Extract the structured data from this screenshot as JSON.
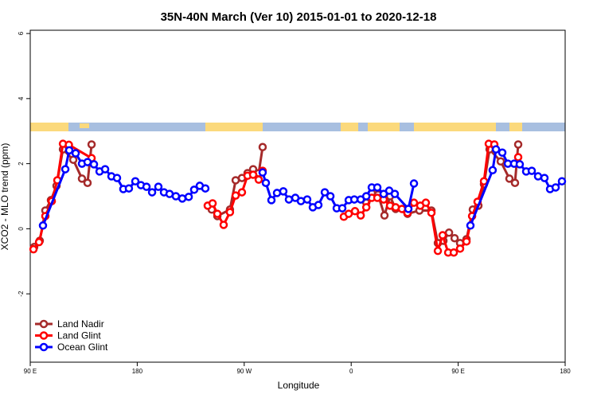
{
  "chart_data": {
    "type": "line",
    "title": "35N-40N March (Ver 10)   2015-01-01 to 2020-12-18",
    "x_label": "Longitude",
    "y_label": "XCO2 - MLO trend (ppm)",
    "xlim": [
      90,
      540
    ],
    "xticks": [
      {
        "value": 90,
        "label": "90 E"
      },
      180,
      {
        "value": 270,
        "label": "90 W"
      },
      {
        "value": 360,
        "label": "0"
      },
      {
        "value": 450,
        "label": "90 E"
      },
      {
        "value": 540,
        "label": "180"
      }
    ],
    "ylim": [
      -4.1,
      6.1
    ],
    "yticks": [
      -2,
      0,
      2,
      4,
      6
    ],
    "legend": "bottom-left",
    "series": [
      {
        "name": "Land Nadir",
        "color": "#a52a2a",
        "x": [
          93.3,
          98,
          102.7,
          107.4,
          112.1,
          117.5,
          126.2,
          133.5,
          138.2,
          141.6,
          242.7,
          247.4,
          258,
          262.8,
          268.1,
          272.8,
          277.5,
          282.2,
          285.5,
          372.7,
          377.3,
          382.6,
          388,
          392.7,
          397.4,
          407.4,
          417.4,
          427.5,
          432.9,
          437.6,
          442.3,
          447,
          451.6,
          457,
          462.3,
          467,
          471.7,
          476.4,
          485.8,
          493.1,
          497.8,
          500.5
        ],
        "values": [
          -0.56,
          -0.37,
          0.56,
          0.88,
          1.32,
          2.44,
          2.12,
          1.54,
          1.41,
          2.59,
          0.59,
          0.39,
          0.59,
          1.49,
          1.56,
          1.71,
          1.83,
          1.71,
          2.51,
          0.8,
          1.1,
          1.05,
          0.41,
          1.0,
          0.61,
          0.46,
          0.56,
          0.56,
          -0.44,
          -0.37,
          -0.12,
          -0.29,
          -0.44,
          -0.32,
          0.59,
          0.71,
          1.37,
          2.44,
          2.07,
          1.54,
          1.41,
          2.59
        ]
      },
      {
        "name": "Land Glint",
        "color": "#ff0000",
        "x": [
          92.7,
          97.4,
          102.7,
          108.1,
          112.8,
          117.5,
          122.5,
          141.6,
          239.3,
          243.4,
          247.4,
          252.7,
          258,
          262.8,
          268.1,
          272.8,
          277.5,
          282.2,
          285.5,
          353.8,
          357.9,
          363.2,
          368,
          372.7,
          377.3,
          382,
          387.3,
          392.7,
          397.4,
          402.7,
          407.4,
          412.8,
          418.1,
          422.8,
          427.5,
          432.9,
          436.9,
          441.6,
          446.3,
          451.6,
          457,
          461.7,
          466.3,
          471.7,
          475.7,
          480.4,
          500.5
        ],
        "values": [
          -0.63,
          -0.41,
          0.39,
          0.85,
          1.49,
          2.61,
          2.58,
          2.17,
          0.71,
          0.78,
          0.46,
          0.12,
          0.51,
          1.02,
          1.12,
          1.63,
          1.66,
          1.51,
          1.78,
          0.37,
          0.46,
          0.54,
          0.41,
          0.66,
          0.95,
          0.95,
          0.9,
          0.71,
          0.66,
          0.61,
          0.49,
          0.8,
          0.71,
          0.8,
          0.49,
          -0.68,
          -0.2,
          -0.73,
          -0.73,
          -0.61,
          -0.39,
          0.39,
          0.83,
          1.46,
          2.61,
          2.59,
          2.2
        ]
      },
      {
        "name": "Ocean Glint",
        "color": "#0000ff",
        "x": [
          100.7,
          119.5,
          122.8,
          128.2,
          133.5,
          138.2,
          143.6,
          148.3,
          153,
          158.3,
          163,
          168.3,
          173,
          178.4,
          183.1,
          187.8,
          192.5,
          197.8,
          202.5,
          207.2,
          212.5,
          217.9,
          223.3,
          227.9,
          232.6,
          237.3,
          285.5,
          288.2,
          292.9,
          297.6,
          302.9,
          307.6,
          313,
          317.7,
          323,
          327.7,
          332.4,
          337.8,
          342.5,
          347.8,
          352.5,
          357.9,
          362.6,
          368,
          372.7,
          377.3,
          382,
          387.3,
          392,
          396.7,
          408.1,
          412.8,
          460.3,
          479,
          481.8,
          487.1,
          491.8,
          497.1,
          501.8,
          507.2,
          511.9,
          517.2,
          522.6,
          527.3,
          532,
          537.3
        ],
        "values": [
          0.1,
          1.83,
          2.41,
          2.32,
          2.0,
          2.05,
          1.98,
          1.76,
          1.83,
          1.61,
          1.56,
          1.22,
          1.24,
          1.46,
          1.34,
          1.29,
          1.12,
          1.29,
          1.12,
          1.07,
          1.0,
          0.93,
          0.98,
          1.2,
          1.32,
          1.24,
          1.73,
          1.41,
          0.88,
          1.1,
          1.15,
          0.9,
          0.95,
          0.85,
          0.9,
          0.66,
          0.73,
          1.12,
          1.0,
          0.63,
          0.63,
          0.88,
          0.9,
          0.9,
          1.0,
          1.27,
          1.27,
          1.07,
          1.17,
          1.07,
          0.61,
          1.39,
          0.1,
          1.8,
          2.44,
          2.34,
          2.0,
          2.0,
          1.98,
          1.76,
          1.78,
          1.61,
          1.56,
          1.22,
          1.27,
          1.46
        ]
      }
    ]
  }
}
